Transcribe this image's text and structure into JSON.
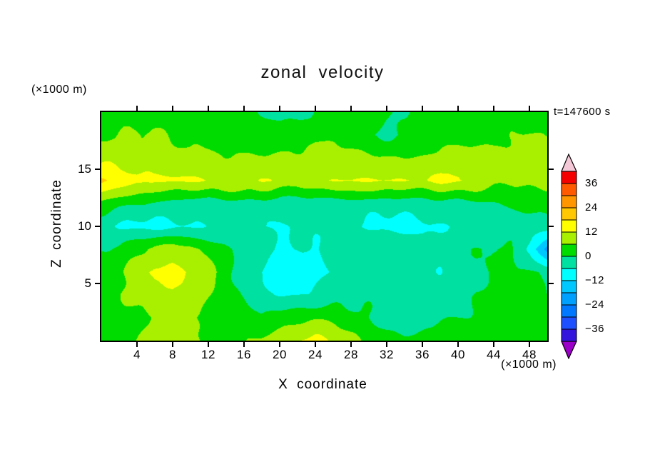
{
  "title": "zonal velocity",
  "timestamp": "t=147600 s",
  "axes": {
    "x_label": "X coordinate",
    "x_unit": "(×1000 m)",
    "y_label": "Z coordinate",
    "y_unit": "(×1000 m)",
    "x_ticks": [
      4,
      8,
      12,
      16,
      20,
      24,
      28,
      32,
      36,
      40,
      44,
      48
    ],
    "y_ticks": [
      5,
      10,
      15
    ],
    "x_range": [
      0,
      50
    ],
    "y_range": [
      0,
      20
    ]
  },
  "colorbar": {
    "labels": [
      36,
      24,
      12,
      0,
      -12,
      -24,
      -36
    ],
    "segment_colors": [
      "#3214dc",
      "#1e50ff",
      "#0078ff",
      "#00a0ff",
      "#00c8ff",
      "#00ffff",
      "#00e0a0",
      "#00dc00",
      "#a8f000",
      "#ffff00",
      "#ffc800",
      "#ff9600",
      "#ff5a00",
      "#f50000"
    ],
    "under_color": "#9b00c8",
    "over_color": "#f5c8d7"
  },
  "chart_data": {
    "type": "heatmap",
    "title": "zonal velocity",
    "xlabel": "X coordinate (×1000 m)",
    "ylabel": "Z coordinate (×1000 m)",
    "annotation": "t=147600 s",
    "x_range": [
      0,
      50
    ],
    "z_range": [
      0,
      20
    ],
    "levels": [
      -42,
      -36,
      -30,
      -24,
      -18,
      -12,
      -6,
      0,
      6,
      12,
      18,
      24,
      30,
      36,
      42
    ],
    "x": [
      0,
      2,
      4,
      6,
      8,
      10,
      12,
      14,
      16,
      18,
      20,
      22,
      24,
      26,
      28,
      30,
      32,
      34,
      36,
      38,
      40,
      42,
      44,
      46,
      48,
      50
    ],
    "z": [
      20,
      18,
      16,
      14,
      12,
      10,
      8,
      6,
      4,
      2,
      0
    ],
    "values": [
      [
        2,
        2,
        3,
        3,
        2,
        2,
        2,
        1,
        1,
        0,
        -1,
        -1,
        0,
        1,
        2,
        2,
        1,
        0,
        1,
        2,
        2,
        2,
        3,
        3,
        2,
        2
      ],
      [
        5,
        6,
        7,
        6,
        5,
        4,
        3,
        3,
        2,
        2,
        2,
        3,
        4,
        4,
        2,
        0,
        -1,
        0,
        1,
        2,
        3,
        4,
        5,
        6,
        6,
        5
      ],
      [
        10,
        9,
        8,
        8,
        8,
        7,
        7,
        6,
        6,
        7,
        7,
        8,
        9,
        9,
        8,
        7,
        6,
        6,
        7,
        8,
        9,
        8,
        7,
        8,
        9,
        9
      ],
      [
        19,
        16,
        14,
        13,
        13,
        12,
        12,
        11,
        12,
        13,
        11,
        10,
        11,
        12,
        12,
        13,
        13,
        12,
        12,
        13,
        13,
        10,
        8,
        7,
        8,
        10
      ],
      [
        4,
        2,
        0,
        -1,
        -2,
        -3,
        -3,
        -2,
        -2,
        -3,
        -4,
        -4,
        -3,
        -3,
        -2,
        -3,
        -4,
        -4,
        -3,
        -2,
        -2,
        -1,
        0,
        1,
        2,
        2
      ],
      [
        -4,
        -7,
        -8,
        -8,
        -7,
        -6,
        -6,
        -5,
        -5,
        -6,
        -6,
        -5,
        -5,
        -4,
        -5,
        -7,
        -8,
        -8,
        -7,
        -6,
        -5,
        -4,
        -4,
        -3,
        -3,
        -2
      ],
      [
        0,
        2,
        5,
        8,
        9,
        7,
        4,
        1,
        -2,
        -4,
        -6,
        -7,
        -6,
        -3,
        -1,
        0,
        -1,
        -2,
        -4,
        -4,
        -2,
        0,
        1,
        0,
        -6,
        -22
      ],
      [
        2,
        5,
        9,
        13,
        14,
        12,
        8,
        3,
        -3,
        -6,
        -8,
        -9,
        -8,
        -5,
        -2,
        -1,
        -2,
        -3,
        -5,
        -5,
        -3,
        -1,
        0,
        1,
        0,
        -1
      ],
      [
        3,
        5,
        8,
        10,
        11,
        9,
        6,
        3,
        -1,
        -4,
        -6,
        -6,
        -5,
        -3,
        -1,
        -2,
        -3,
        -4,
        -5,
        -4,
        -2,
        0,
        1,
        2,
        1,
        0
      ],
      [
        2,
        3,
        4,
        6,
        7,
        6,
        4,
        3,
        2,
        1,
        2,
        4,
        5,
        4,
        2,
        0,
        -2,
        -3,
        -2,
        -1,
        0,
        1,
        2,
        2,
        3,
        2
      ],
      [
        3,
        4,
        6,
        9,
        10,
        8,
        5,
        4,
        5,
        7,
        10,
        13,
        14,
        12,
        7,
        4,
        2,
        1,
        2,
        3,
        4,
        3,
        4,
        5,
        4,
        3
      ]
    ]
  }
}
